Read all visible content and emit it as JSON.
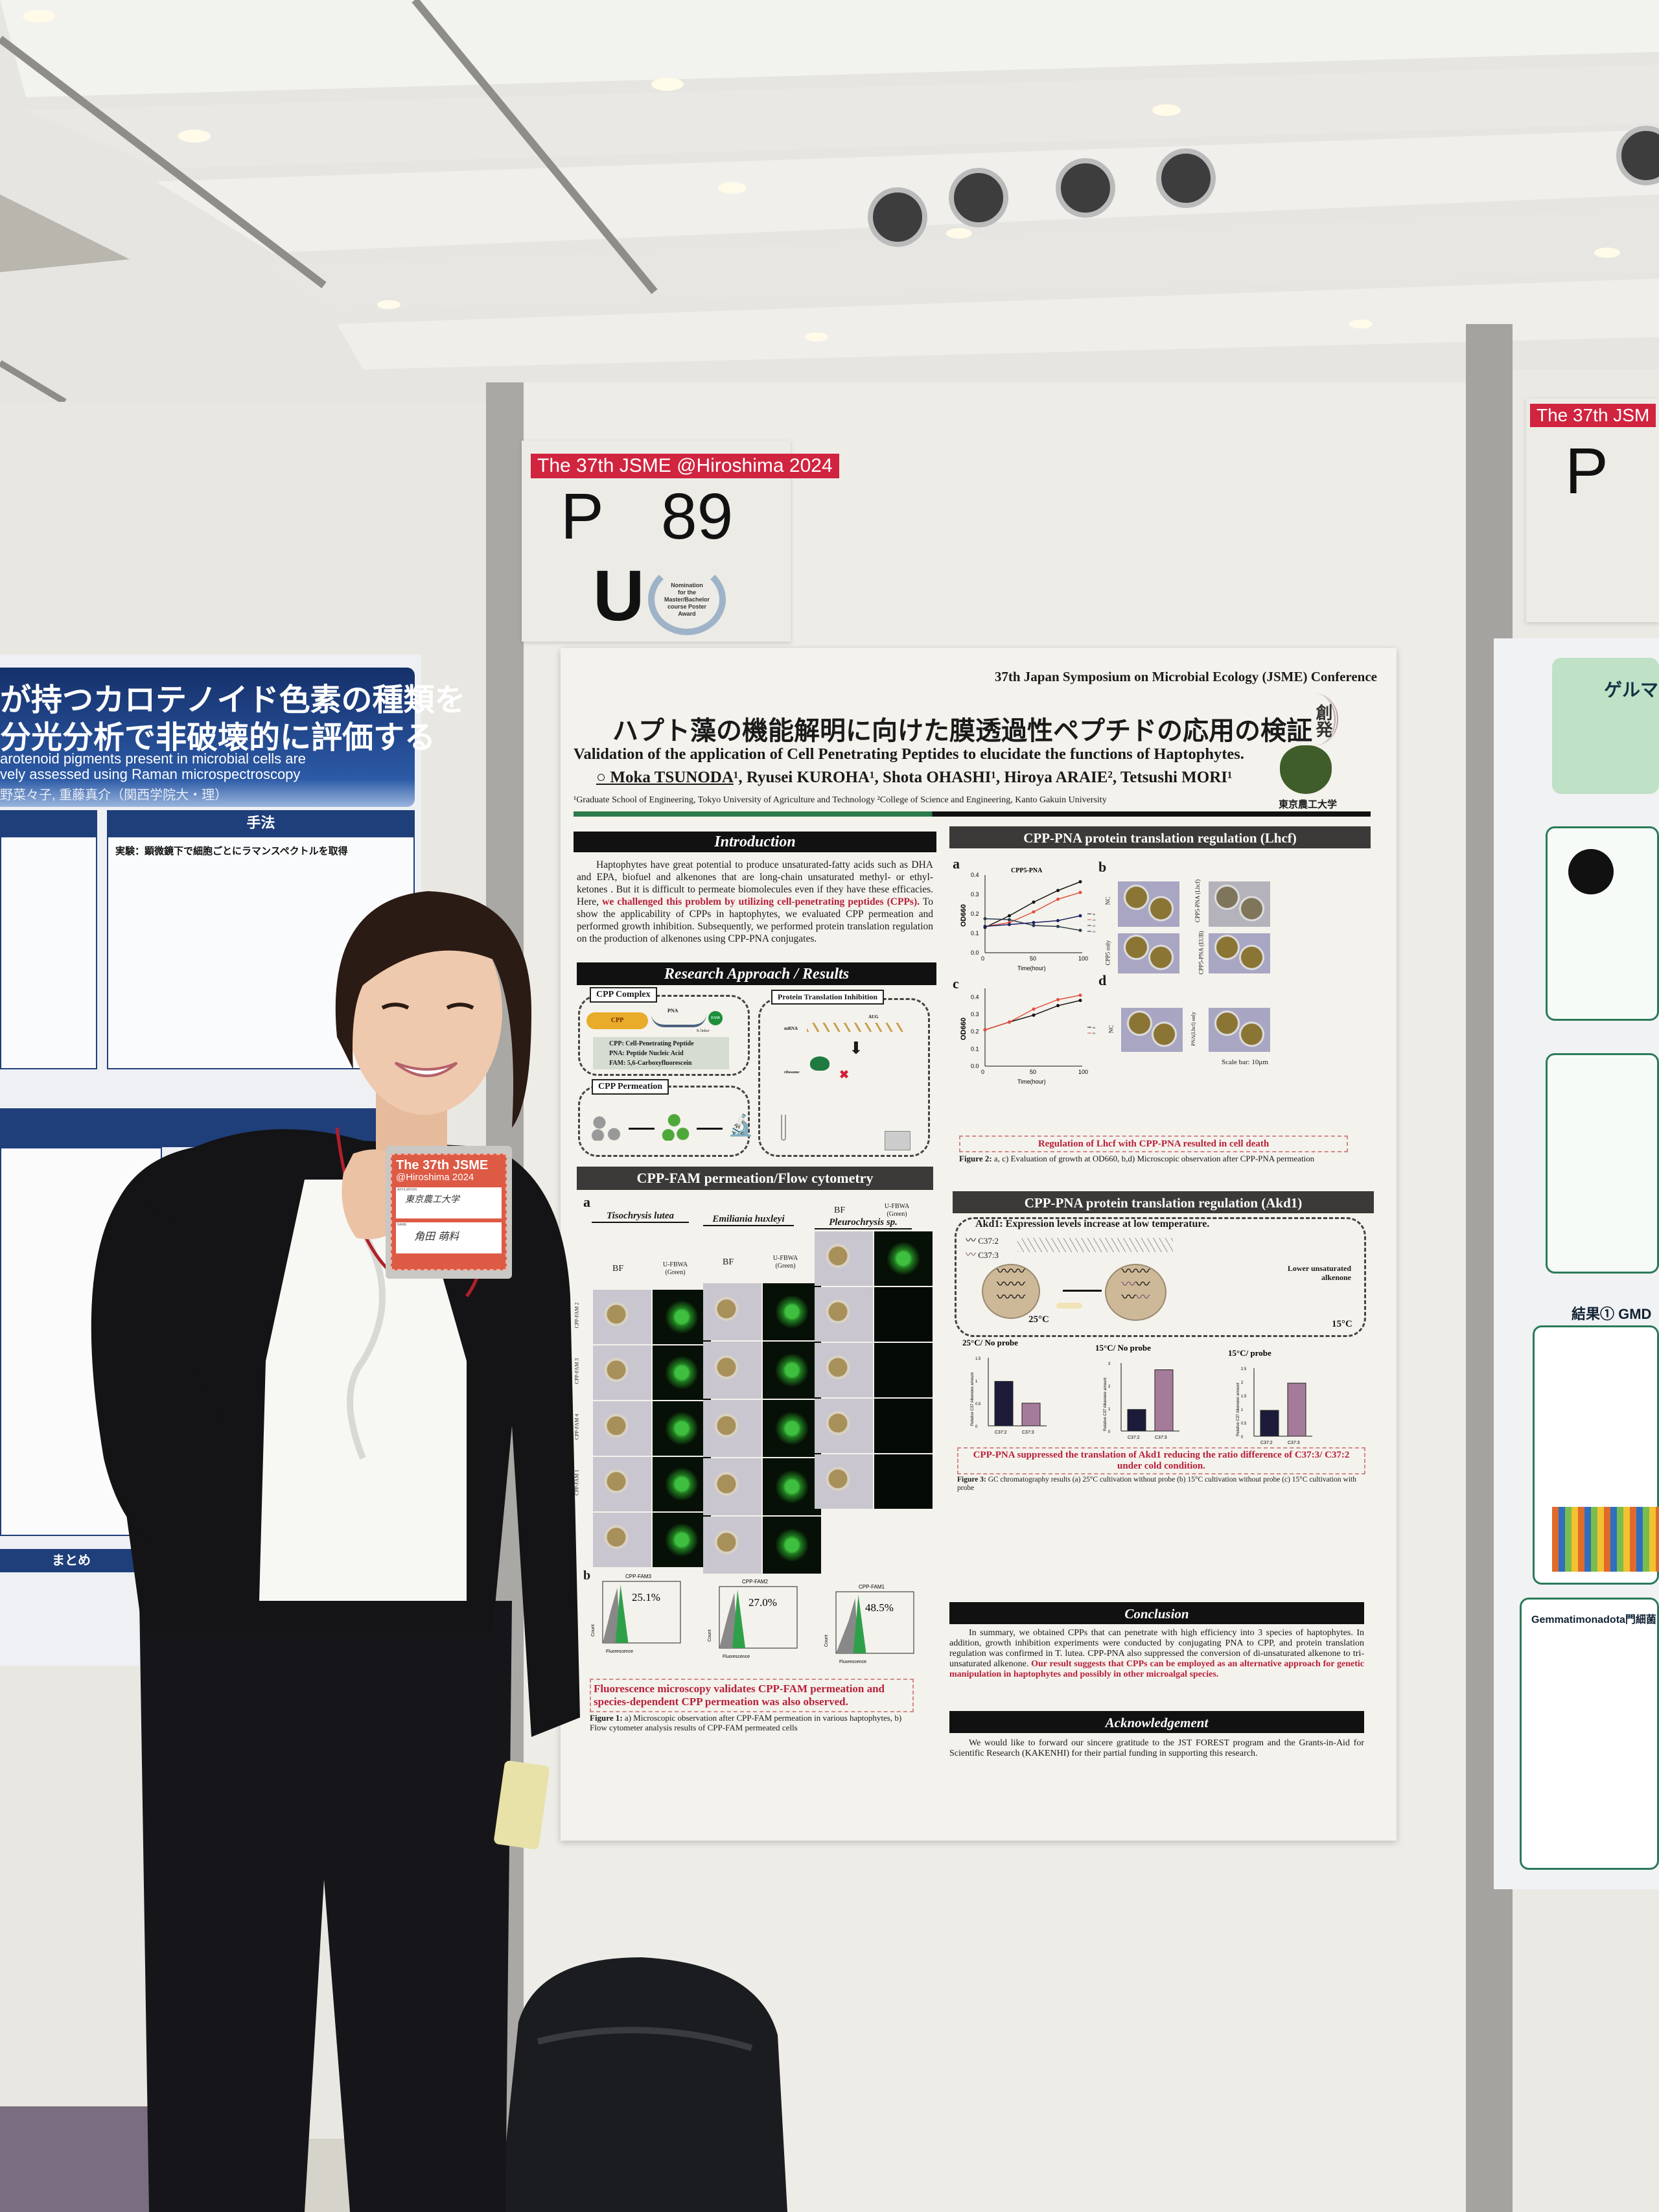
{
  "scene": {
    "left_poster": {
      "title_lines": [
        "が持つカロテノイド色素の種類を",
        "分光分析で非破壊的に評価する"
      ],
      "subtitle_lines": [
        "arotenoid pigments present in microbial cells are",
        "vely assessed using Raman microspectroscopy"
      ],
      "authors": "野菜々子, 重藤真介（関西学院大・理）",
      "section_method": "手法",
      "experiment": "実験：顕微鏡下で細胞ごとにラマンスペクトルを取得",
      "section_summary": "まとめ"
    },
    "board_tag": {
      "event": "The 37th JSME @Hiroshima 2024",
      "prefix": "P",
      "number": "89",
      "category": "U",
      "award_lines": [
        "Nomination",
        "for the",
        "Master/Bachelor",
        "course Poster",
        "Award"
      ]
    },
    "right_tag": {
      "event": "The 37th JSM",
      "prefix": "P"
    },
    "right_poster": {
      "title": "ゲルマ",
      "result": "結果① GMD",
      "phylum": "Gemmatimonadota門細菌"
    },
    "badge": {
      "event_line1": "The 37th JSME",
      "event_line2": "@Hiroshima 2024",
      "affiliation_label": "AFFILIATION",
      "affiliation": "東京農工大学",
      "name_label": "NAME",
      "name": "角田 萌料"
    }
  },
  "poster": {
    "conference": "37th Japan Symposium on Microbial Ecology (JSME) Conference",
    "title_jp": "ハプト藻の機能解明に向けた膜透過性ペプチドの応用の検証",
    "title_en": "Validation of the application of Cell Penetrating Peptides to elucidate the functions of Haptophytes.",
    "presenter": "○ Moka TSUNODA",
    "coauthors": "¹, Ryusei KUROHA¹, Shota OHASHI¹, Hiroya ARAIE², Tetsushi MORI¹",
    "affiliations": "¹Graduate School of Engineering, Tokyo University of Agriculture and Technology ²College of Science and Engineering, Kanto Gakuin University",
    "logo_text": "創発",
    "university": "東京農工大学",
    "intro": {
      "heading": "Introduction",
      "text_a": "Haptophytes have great potential to produce unsaturated-fatty acids such as DHA and EPA, biofuel and alkenones that are long-chain unsaturated methyl- or ethyl- ketones . But it is difficult to permeate biomolecules even if they have these efficacies. Here, ",
      "text_red": "we challenged this problem by utilizing cell-penetrating peptides (CPPs).",
      "text_b": " To show the applicability of CPPs in haptophytes, we evaluated CPP permeation and performed growth inhibition. Subsequently, we performed protein translation regulation on the production of alkenones using CPP-PNA conjugates."
    },
    "approach": {
      "heading": "Research Approach / Results",
      "complex_label": "CPP Complex",
      "cpp": "CPP",
      "pna": "PNA",
      "fam": "FAM",
      "linker": "K linker",
      "defs": [
        "CPP: Cell-Penetrating Peptide",
        "PNA: Peptide Nucleic Acid",
        "FAM: 5,6-Carboxyfluorescein"
      ],
      "permeation_label": "CPP Permeation",
      "inhibition_label": "Protein Translation Inhibition",
      "mrna": "mRNA",
      "aug": "AUG",
      "ribosome": "ribosome"
    },
    "fig1": {
      "heading": "CPP-FAM permeation/Flow cytometry",
      "panel_a": "a",
      "panel_b": "b",
      "species": [
        "Tisochrysis lutea",
        "Emiliania huxleyi",
        "Pleurochrysis sp."
      ],
      "bf": "BF",
      "green": "U-FBWA (Green)",
      "rows": [
        "CPP-FAM 2",
        "CPP-FAM 3",
        "CPP-FAM 4",
        "CPP-FAM 1",
        "NC"
      ],
      "histograms": [
        {
          "label": "CPP-FAM3",
          "percent": "25.1%",
          "value": 25.1
        },
        {
          "label": "CPP-FAM2",
          "percent": "27.0%",
          "value": 27.0
        },
        {
          "label": "CPP-FAM1",
          "percent": "48.5%",
          "value": 48.5
        }
      ],
      "count": "Count",
      "fluorescence": "Fluorescence",
      "conclusion": "Fluorescence microscopy validates CPP-FAM permeation and species-dependent CPP permeation was also observed.",
      "caption_bold": "Figure 1:",
      "caption": " a) Microscopic observation after CPP-FAM permeation in various haptophytes, b) Flow cytometer analysis results of CPP-FAM permeated cells"
    },
    "fig2": {
      "heading": "CPP-PNA protein translation regulation (Lhcf)",
      "panels": [
        "a",
        "b",
        "c",
        "d"
      ],
      "chart_a_title": "CPP5-PNA",
      "ylabel": "OD660",
      "xlabel": "Time(hour)",
      "micro_labels_b": [
        "NC",
        "CPP5-PNA (Lhcf)",
        "CPP5 only",
        "CPP5-PNA (EUB)"
      ],
      "micro_labels_d": [
        "NC",
        "PNA(Lhcf) only"
      ],
      "scale_bar": "Scale bar: 10μm",
      "conclusion": "Regulation of Lhcf with CPP-PNA resulted in cell death",
      "caption_bold": "Figure 2:",
      "caption": " a, c) Evaluation of growth at OD660, b,d) Microscopic observation after CPP-PNA permeation"
    },
    "fig3": {
      "heading": "CPP-PNA protein translation regulation (Akd1)",
      "subtitle": "Akd1: Expression levels increase at low temperature.",
      "c372": "C37:2",
      "c373": "C37:3",
      "lower": "Lower unsaturated alkenone",
      "t25": "25°C",
      "t15": "15°C",
      "conclusion": "CPP-PNA suppressed the translation of Akd1 reducing the ratio difference of C37:3/ C37:2 under cold condition.",
      "caption_bold": "Figure 3:",
      "caption": " GC chromatography results (a) 25°C cultivation without probe (b) 15°C cultivation without probe (c) 15°C cultivation with probe",
      "bar_ylabel": "Relative C37 Alkenone amount"
    },
    "conclusion": {
      "heading": "Conclusion",
      "text_a": "In summary, we obtained CPPs that can penetrate with high efficiency into 3 species of haptophytes. In addition, growth inhibition experiments were conducted by conjugating PNA to CPP, and protein translation regulation was confirmed in T. lutea. CPP-PNA also suppressed the conversion of di-unsaturated alkenone to tri-unsaturated alkenone. ",
      "text_red": "Our result suggests that CPPs can be employed as an alternative approach for genetic manipulation in haptophytes and possibly in other microalgal species."
    },
    "ack": {
      "heading": "Acknowledgement",
      "text": "We would like to forward our sincere gratitude to the JST FOREST program and the Grants-in-Aid for Scientific Research (KAKENHI) for their partial funding in supporting this research."
    }
  },
  "chart_data": [
    {
      "type": "line",
      "id": "fig2a",
      "title": "CPP5-PNA",
      "xlabel": "Time(hour)",
      "ylabel": "OD660",
      "xlim": [
        0,
        100
      ],
      "ylim": [
        0,
        0.4
      ],
      "xticks": [
        0,
        50,
        100
      ],
      "yticks": [
        0.0,
        0.1,
        0.2,
        0.3,
        0.4
      ],
      "x": [
        0,
        25,
        50,
        75,
        98
      ],
      "series": [
        {
          "name": "NC",
          "color": "#111111",
          "values": [
            0.13,
            0.19,
            0.26,
            0.32,
            0.365
          ]
        },
        {
          "name": "CPP5 only",
          "color": "#e05040",
          "values": [
            0.135,
            0.155,
            0.21,
            0.275,
            0.31
          ]
        },
        {
          "name": "CPP5-PNA (Lhcf)",
          "color": "#2a3d4a",
          "values": [
            0.175,
            0.17,
            0.14,
            0.135,
            0.115
          ]
        },
        {
          "name": "CPP5-PNA (EUB)",
          "color": "#1b2060",
          "values": [
            0.135,
            0.145,
            0.155,
            0.165,
            0.19
          ]
        }
      ]
    },
    {
      "type": "line",
      "id": "fig2c",
      "title": "",
      "xlabel": "Time(hour)",
      "ylabel": "OD660",
      "xlim": [
        0,
        100
      ],
      "ylim": [
        0,
        0.45
      ],
      "xticks": [
        0,
        50,
        100
      ],
      "yticks": [
        0.0,
        0.1,
        0.2,
        0.3,
        0.4
      ],
      "x": [
        0,
        25,
        50,
        75,
        98
      ],
      "series": [
        {
          "name": "NC",
          "color": "#111111",
          "values": [
            0.21,
            0.255,
            0.295,
            0.35,
            0.38
          ]
        },
        {
          "name": "PNA(Lhcf) only",
          "color": "#e05040",
          "values": [
            0.21,
            0.255,
            0.33,
            0.385,
            0.41
          ]
        }
      ]
    },
    {
      "type": "bar",
      "id": "fig3a",
      "title": "25°C/ No probe",
      "categories": [
        "C37:2",
        "C37:3"
      ],
      "values": [
        0.98,
        0.5
      ],
      "ylim": [
        0,
        1.5
      ],
      "yticks": [
        0.0,
        0.5,
        1.0,
        1.5
      ],
      "colors": [
        "#1c1c3a",
        "#a57b9b"
      ]
    },
    {
      "type": "bar",
      "id": "fig3b",
      "title": "15°C/ No probe",
      "categories": [
        "C37:2",
        "C37:3"
      ],
      "values": [
        0.95,
        2.7
      ],
      "ylim": [
        0,
        3
      ],
      "yticks": [
        0,
        1,
        2,
        3
      ],
      "colors": [
        "#1c1c3a",
        "#a57b9b"
      ]
    },
    {
      "type": "bar",
      "id": "fig3c",
      "title": "15°C/ probe",
      "categories": [
        "C37:2",
        "C37:3"
      ],
      "values": [
        0.95,
        1.95
      ],
      "ylim": [
        0,
        2.5
      ],
      "yticks": [
        0.0,
        0.5,
        1.0,
        1.5,
        2.0,
        2.5
      ],
      "colors": [
        "#1c1c3a",
        "#a57b9b"
      ]
    }
  ]
}
